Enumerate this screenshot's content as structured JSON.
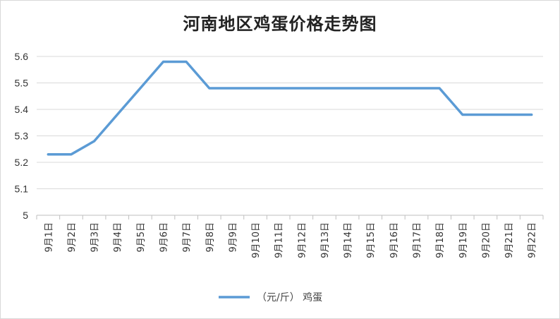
{
  "chart_data": {
    "type": "line",
    "title": "河南地区鸡蛋价格走势图",
    "categories": [
      "9月1日",
      "9月2日",
      "9月3日",
      "9月4日",
      "9月5日",
      "9月6日",
      "9月7日",
      "9月8日",
      "9月9日",
      "9月10日",
      "9月11日",
      "9月12日",
      "9月13日",
      "9月14日",
      "9月15日",
      "9月16日",
      "9月17日",
      "9月18日",
      "9月19日",
      "9月20日",
      "9月21日",
      "9月22日"
    ],
    "series": [
      {
        "name": "（元/斤） 鸡蛋",
        "values": [
          5.23,
          5.23,
          5.28,
          5.38,
          5.48,
          5.58,
          5.58,
          5.48,
          5.48,
          5.48,
          5.48,
          5.48,
          5.48,
          5.48,
          5.48,
          5.48,
          5.48,
          5.48,
          5.38,
          5.38,
          5.38,
          5.38
        ]
      }
    ],
    "ylim": [
      5,
      5.6
    ],
    "yticks": [
      "5",
      "5.1",
      "5.2",
      "5.3",
      "5.4",
      "5.5",
      "5.6"
    ],
    "xlabel": "",
    "ylabel": "",
    "grid": true,
    "legend": "bottom-center",
    "line_color": "#5B9BD5",
    "grid_color": "#d9d9d9"
  }
}
